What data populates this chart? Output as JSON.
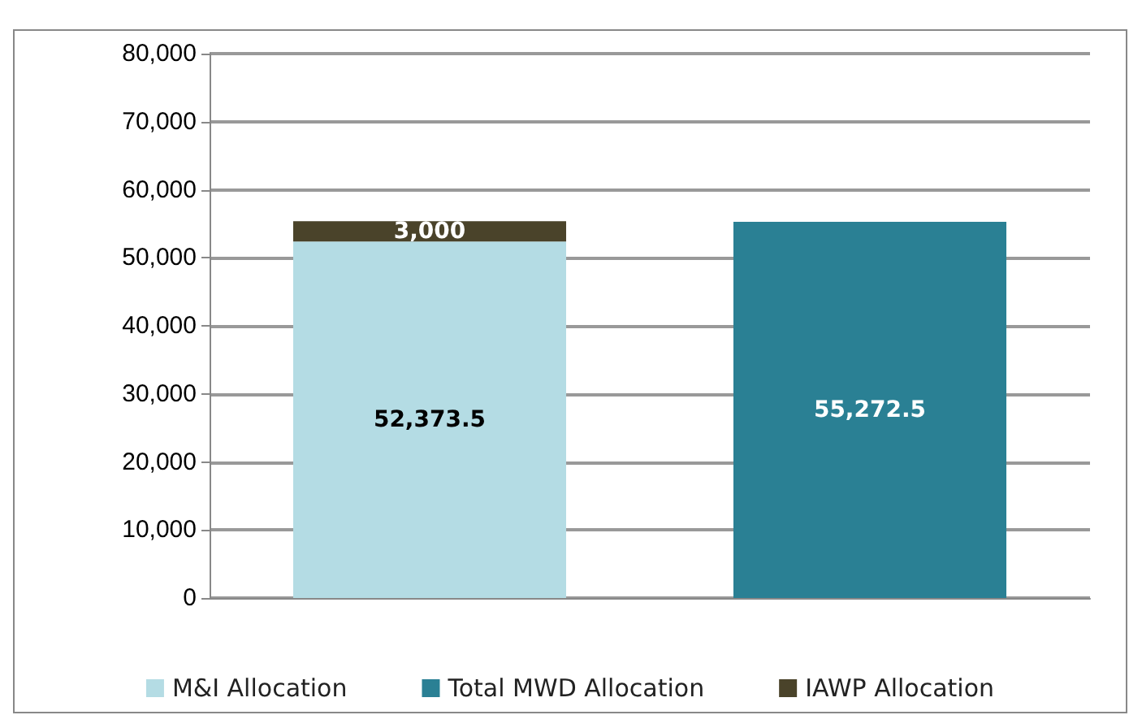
{
  "chart_data": {
    "type": "bar",
    "stacked": true,
    "categories": [
      null,
      null
    ],
    "series": [
      {
        "name": "M&I Allocation",
        "color": "#b4dce4",
        "values": [
          52373.5,
          null
        ],
        "value_labels": [
          "52,373.5",
          null
        ]
      },
      {
        "name": "Total MWD Allocation",
        "color": "#2a8094",
        "values": [
          null,
          55272.5
        ],
        "value_labels": [
          null,
          "55,272.5"
        ]
      },
      {
        "name": "IAWP Allocation",
        "color": "#4a432a",
        "values": [
          3000,
          null
        ],
        "value_labels": [
          "3,000",
          null
        ]
      }
    ],
    "ylim": [
      0,
      80000
    ],
    "yticks": [
      0,
      {
        "value": 10000,
        "label": "10,000"
      },
      {
        "value": 20000,
        "label": "20,000"
      },
      {
        "value": 30000,
        "label": "30,000"
      },
      {
        "value": 40000,
        "label": "40,000"
      },
      {
        "value": 50000,
        "label": "50,000"
      },
      {
        "value": 60000,
        "label": "60,000"
      },
      {
        "value": 70000,
        "label": "70,000"
      },
      {
        "value": 80000,
        "label": "80,000"
      }
    ],
    "grid": "y",
    "legend": "bottom"
  }
}
